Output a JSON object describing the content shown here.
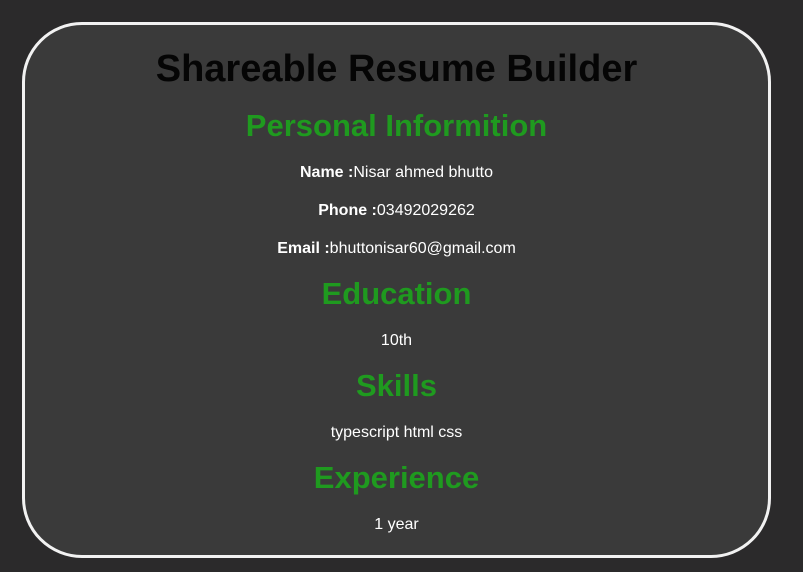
{
  "page": {
    "title": "Shareable Resume Builder"
  },
  "sections": {
    "personal": {
      "heading": "Personal Informition",
      "name_label": "Name :",
      "name_value": "Nisar ahmed bhutto",
      "phone_label": "Phone :",
      "phone_value": "03492029262",
      "email_label": "Email :",
      "email_value": "bhuttonisar60@gmail.com"
    },
    "education": {
      "heading": "Education",
      "value": "10th"
    },
    "skills": {
      "heading": "Skills",
      "value": "typescript html css"
    },
    "experience": {
      "heading": "Experience",
      "value": "1 year"
    }
  },
  "colors": {
    "page_background": "#2b2a2b",
    "card_background": "#3a3a3a",
    "card_border": "#f2f2f2",
    "title": "#050505",
    "section_heading": "#1f9a1f",
    "body_text": "#ffffff"
  }
}
